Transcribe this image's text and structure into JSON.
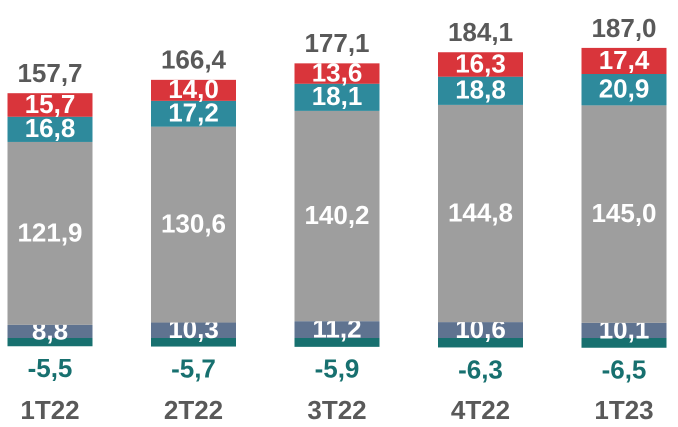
{
  "chart_data": {
    "type": "stacked_bar",
    "categories": [
      "1T22",
      "2T22",
      "3T22",
      "4T22",
      "1T23"
    ],
    "series": [
      {
        "color": "#17706f",
        "values": [
          -5.5,
          -5.7,
          -5.9,
          -6.3,
          -6.5
        ],
        "value_labels": [
          "-5,5",
          "-5,7",
          "-5,9",
          "-6,3",
          "-6,5"
        ]
      },
      {
        "color": "#5f7390",
        "values": [
          8.8,
          10.3,
          11.2,
          10.6,
          10.1
        ],
        "value_labels": [
          "8,8",
          "10,3",
          "11,2",
          "10,6",
          "10,1"
        ]
      },
      {
        "color": "#9e9e9e",
        "values": [
          121.9,
          130.6,
          140.2,
          144.8,
          145.0
        ],
        "value_labels": [
          "121,9",
          "130,6",
          "140,2",
          "144,8",
          "145,0"
        ]
      },
      {
        "color": "#2e8a9c",
        "values": [
          16.8,
          17.2,
          18.1,
          18.8,
          20.9
        ],
        "value_labels": [
          "16,8",
          "17,2",
          "18,1",
          "18,8",
          "20,9"
        ]
      },
      {
        "color": "#d9353b",
        "values": [
          15.7,
          14.0,
          13.6,
          16.3,
          17.4
        ],
        "value_labels": [
          "15,7",
          "14,0",
          "13,6",
          "16,3",
          "17,4"
        ]
      }
    ],
    "totals": [
      157.7,
      166.4,
      177.1,
      184.1,
      187.0
    ],
    "totals_labels": [
      "157,7",
      "166,4",
      "177,1",
      "184,1",
      "187,0"
    ],
    "ylim": [
      -10,
      220
    ]
  }
}
